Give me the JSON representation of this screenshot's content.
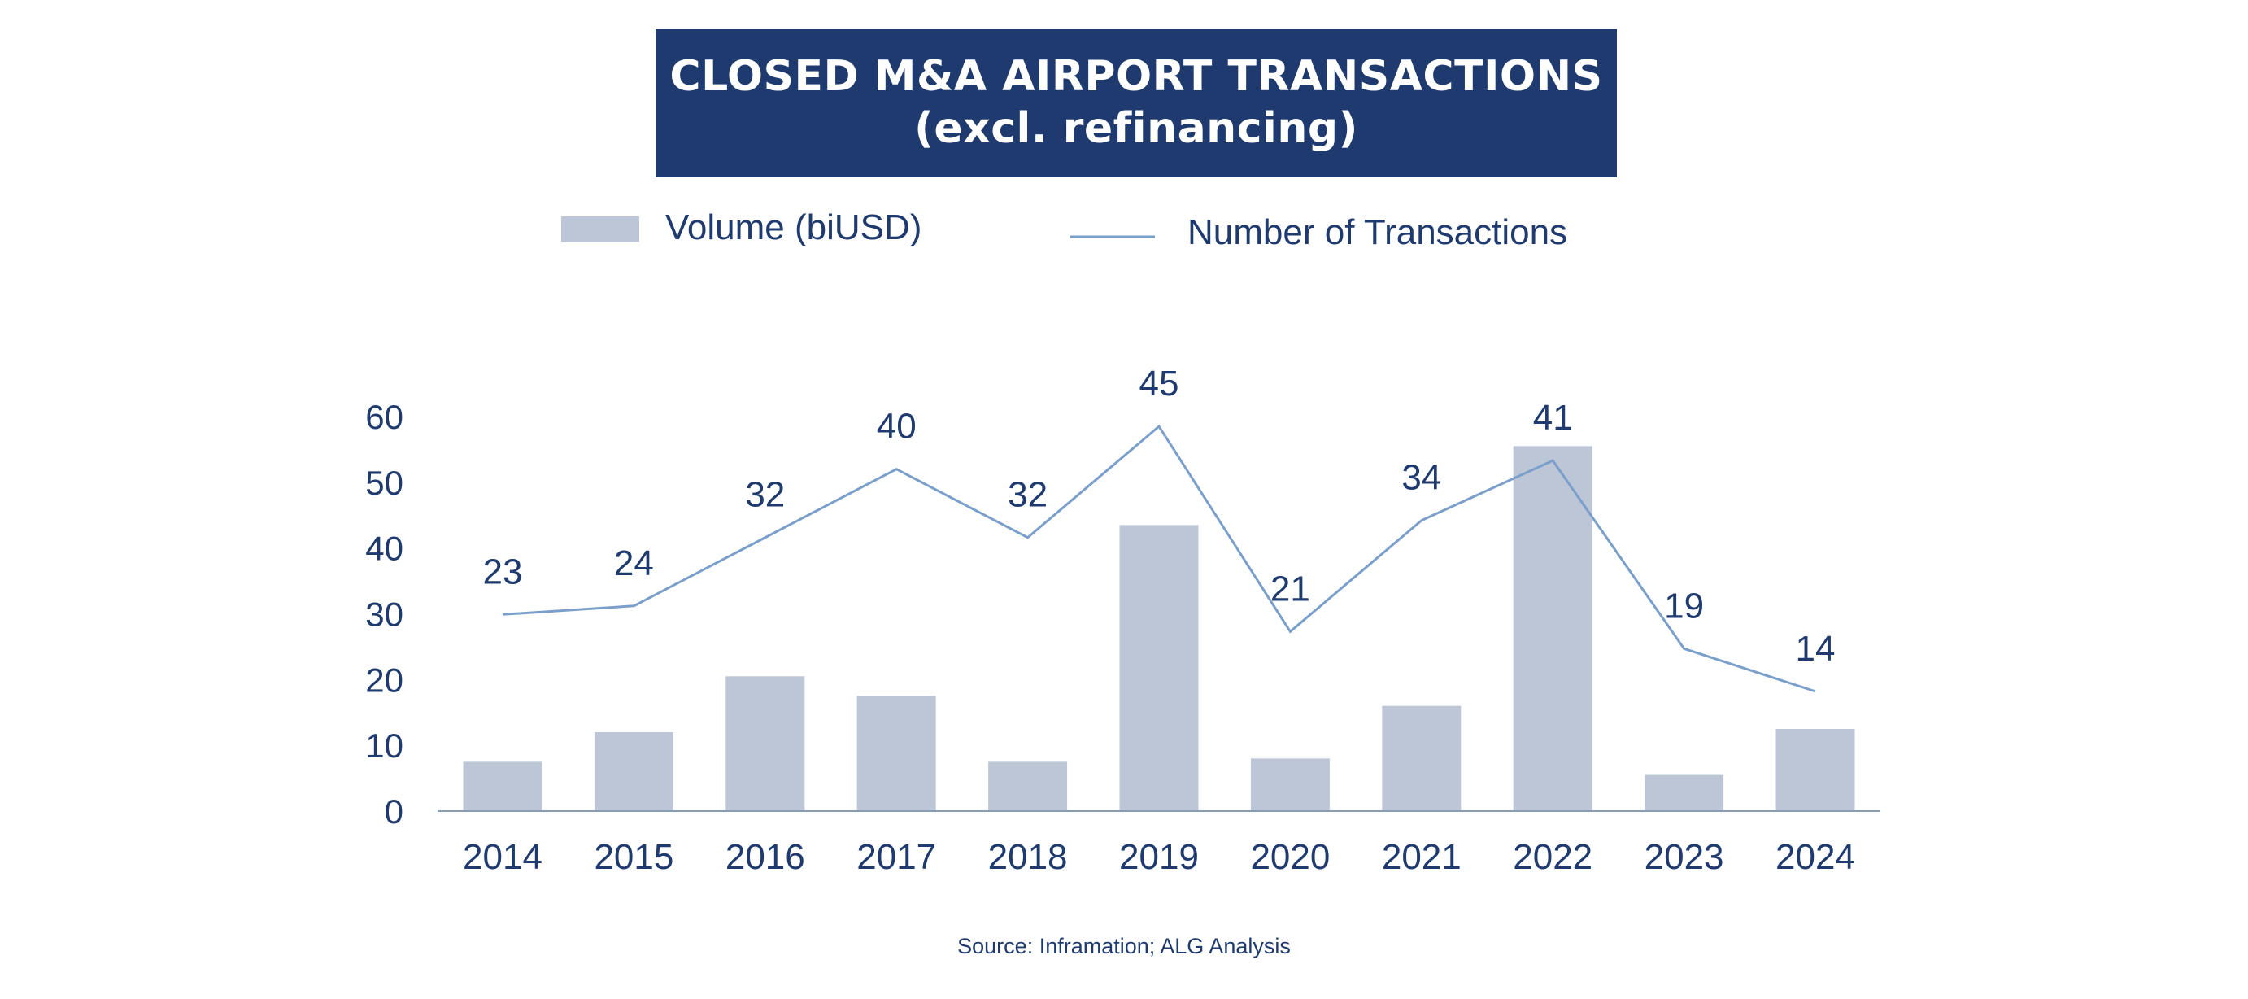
{
  "title": {
    "line1": "CLOSED M&A AIRPORT TRANSACTIONS",
    "line2": "(excl. refinancing)"
  },
  "legend": {
    "volume_label": "Volume (biUSD)",
    "transactions_label": "Number of Transactions"
  },
  "source": "Source: Inframation; ALG Analysis",
  "colors": {
    "title_bg": "#1f3a6e",
    "bar": "#bcc6d6",
    "line": "#7b9fcb",
    "text": "#1f3a6e",
    "axis": "#8a9bb5"
  },
  "chart_data": {
    "type": "bar",
    "categories": [
      "2014",
      "2015",
      "2016",
      "2017",
      "2018",
      "2019",
      "2020",
      "2021",
      "2022",
      "2023",
      "2024"
    ],
    "ylim": [
      0,
      60
    ],
    "yticks": [
      "0",
      "10",
      "20",
      "30",
      "40",
      "50",
      "60"
    ],
    "grid": false,
    "legend_position": "top",
    "series": [
      {
        "name": "Volume (biUSD)",
        "kind": "bar",
        "values": [
          7.5,
          12,
          20.5,
          17.5,
          7.5,
          43.5,
          8,
          16,
          55.5,
          5.5,
          12.5
        ]
      },
      {
        "name": "Number of Transactions",
        "kind": "line",
        "values": [
          23,
          24,
          32,
          40,
          32,
          45,
          21,
          34,
          41,
          19,
          14
        ],
        "labels": [
          "23",
          "24",
          "32",
          "40",
          "32",
          "45",
          "21",
          "34",
          "41",
          "19",
          "14"
        ]
      }
    ]
  }
}
